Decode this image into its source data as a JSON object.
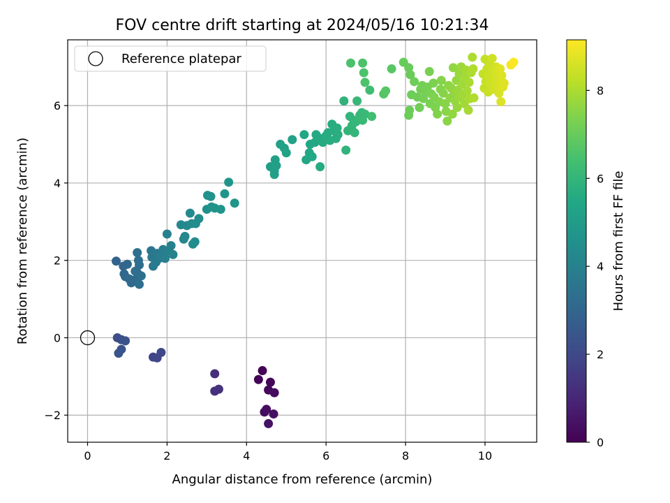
{
  "chart_data": {
    "type": "scatter",
    "title": "FOV centre drift starting at 2024/05/16 10:21:34",
    "xlabel": "Angular distance from reference (arcmin)",
    "ylabel": "Rotation from reference (arcmin)",
    "xlim": [
      -0.5,
      11.3
    ],
    "ylim": [
      -2.7,
      7.7
    ],
    "xticks": [
      0,
      2,
      4,
      6,
      8,
      10
    ],
    "yticks": [
      -2,
      0,
      2,
      4,
      6
    ],
    "grid": true,
    "legend": {
      "placement": "top-left",
      "entries": [
        "Reference platepar"
      ]
    },
    "reference_point": {
      "x": 0,
      "y": 0
    },
    "colorbar": {
      "label": "Hours from first FF file",
      "min": 0,
      "max": 9.15,
      "ticks": [
        0,
        2,
        4,
        6,
        8
      ],
      "colormap": "viridis"
    },
    "points": [
      {
        "x": 4.4,
        "y": -0.85,
        "c": 0.05
      },
      {
        "x": 4.3,
        "y": -1.08,
        "c": 0.1
      },
      {
        "x": 4.6,
        "y": -1.15,
        "c": 0.15
      },
      {
        "x": 4.55,
        "y": -1.35,
        "c": 0.2
      },
      {
        "x": 4.7,
        "y": -1.42,
        "c": 0.25
      },
      {
        "x": 4.45,
        "y": -1.92,
        "c": 0.3
      },
      {
        "x": 4.5,
        "y": -1.85,
        "c": 0.35
      },
      {
        "x": 4.68,
        "y": -1.97,
        "c": 0.4
      },
      {
        "x": 4.55,
        "y": -2.22,
        "c": 0.45
      },
      {
        "x": 3.2,
        "y": -0.93,
        "c": 1.2
      },
      {
        "x": 3.2,
        "y": -1.38,
        "c": 1.25
      },
      {
        "x": 3.3,
        "y": -1.33,
        "c": 1.3
      },
      {
        "x": 1.65,
        "y": -0.5,
        "c": 1.85
      },
      {
        "x": 1.75,
        "y": -0.52,
        "c": 1.9
      },
      {
        "x": 1.85,
        "y": -0.38,
        "c": 1.95
      },
      {
        "x": 0.75,
        "y": 0,
        "c": 2.2
      },
      {
        "x": 0.85,
        "y": -0.05,
        "c": 2.25
      },
      {
        "x": 0.95,
        "y": -0.08,
        "c": 2.3
      },
      {
        "x": 0.85,
        "y": -0.3,
        "c": 2.35
      },
      {
        "x": 0.78,
        "y": -0.4,
        "c": 2.4
      },
      {
        "x": 0.72,
        "y": 1.98,
        "c": 2.9
      },
      {
        "x": 0.9,
        "y": 1.85,
        "c": 3.0
      },
      {
        "x": 1.0,
        "y": 1.9,
        "c": 3.05
      },
      {
        "x": 0.92,
        "y": 1.65,
        "c": 3.1
      },
      {
        "x": 0.95,
        "y": 1.58,
        "c": 3.12
      },
      {
        "x": 1.05,
        "y": 1.52,
        "c": 3.15
      },
      {
        "x": 1.1,
        "y": 1.42,
        "c": 3.18
      },
      {
        "x": 1.2,
        "y": 1.5,
        "c": 3.2
      },
      {
        "x": 1.25,
        "y": 1.68,
        "c": 3.22
      },
      {
        "x": 1.3,
        "y": 1.88,
        "c": 3.25
      },
      {
        "x": 1.28,
        "y": 2.0,
        "c": 3.3
      },
      {
        "x": 1.25,
        "y": 2.2,
        "c": 3.32
      },
      {
        "x": 1.3,
        "y": 1.38,
        "c": 3.35
      },
      {
        "x": 1.35,
        "y": 1.6,
        "c": 3.38
      },
      {
        "x": 1.2,
        "y": 1.72,
        "c": 3.28
      },
      {
        "x": 1.6,
        "y": 2.25,
        "c": 3.6
      },
      {
        "x": 1.62,
        "y": 2.08,
        "c": 3.65
      },
      {
        "x": 1.65,
        "y": 1.85,
        "c": 3.7
      },
      {
        "x": 1.72,
        "y": 1.95,
        "c": 3.72
      },
      {
        "x": 1.75,
        "y": 2.18,
        "c": 3.75
      },
      {
        "x": 1.8,
        "y": 2.05,
        "c": 3.8
      },
      {
        "x": 1.88,
        "y": 2.12,
        "c": 3.85
      },
      {
        "x": 1.9,
        "y": 2.28,
        "c": 3.88
      },
      {
        "x": 1.95,
        "y": 2.05,
        "c": 3.9
      },
      {
        "x": 2.0,
        "y": 2.68,
        "c": 3.95
      },
      {
        "x": 2.05,
        "y": 2.25,
        "c": 3.98
      },
      {
        "x": 2.1,
        "y": 2.38,
        "c": 4.0
      },
      {
        "x": 2.15,
        "y": 2.15,
        "c": 4.02
      },
      {
        "x": 2.35,
        "y": 2.92,
        "c": 4.2
      },
      {
        "x": 2.42,
        "y": 2.55,
        "c": 4.22
      },
      {
        "x": 2.45,
        "y": 2.62,
        "c": 4.25
      },
      {
        "x": 2.5,
        "y": 2.9,
        "c": 4.28
      },
      {
        "x": 2.58,
        "y": 3.22,
        "c": 4.3
      },
      {
        "x": 2.62,
        "y": 2.95,
        "c": 4.32
      },
      {
        "x": 2.65,
        "y": 2.42,
        "c": 4.35
      },
      {
        "x": 2.7,
        "y": 2.48,
        "c": 4.38
      },
      {
        "x": 2.72,
        "y": 2.95,
        "c": 4.4
      },
      {
        "x": 2.8,
        "y": 3.08,
        "c": 4.42
      },
      {
        "x": 3.0,
        "y": 3.32,
        "c": 4.55
      },
      {
        "x": 3.02,
        "y": 3.68,
        "c": 4.58
      },
      {
        "x": 3.1,
        "y": 3.65,
        "c": 4.6
      },
      {
        "x": 3.12,
        "y": 3.38,
        "c": 4.62
      },
      {
        "x": 3.2,
        "y": 3.35,
        "c": 4.65
      },
      {
        "x": 3.35,
        "y": 3.32,
        "c": 4.68
      },
      {
        "x": 3.45,
        "y": 3.72,
        "c": 4.72
      },
      {
        "x": 3.55,
        "y": 4.02,
        "c": 4.75
      },
      {
        "x": 3.7,
        "y": 3.48,
        "c": 4.78
      },
      {
        "x": 4.6,
        "y": 4.42,
        "c": 5.1
      },
      {
        "x": 4.7,
        "y": 4.32,
        "c": 5.12
      },
      {
        "x": 4.72,
        "y": 4.6,
        "c": 5.14
      },
      {
        "x": 4.75,
        "y": 4.45,
        "c": 5.16
      },
      {
        "x": 4.7,
        "y": 4.22,
        "c": 5.18
      },
      {
        "x": 4.85,
        "y": 5.0,
        "c": 5.2
      },
      {
        "x": 4.95,
        "y": 4.9,
        "c": 5.22
      },
      {
        "x": 5.0,
        "y": 4.78,
        "c": 5.24
      },
      {
        "x": 5.15,
        "y": 5.12,
        "c": 5.26
      },
      {
        "x": 5.45,
        "y": 5.25,
        "c": 5.4
      },
      {
        "x": 5.5,
        "y": 4.6,
        "c": 5.42
      },
      {
        "x": 5.58,
        "y": 4.78,
        "c": 5.44
      },
      {
        "x": 5.6,
        "y": 5.0,
        "c": 5.46
      },
      {
        "x": 5.65,
        "y": 4.68,
        "c": 5.48
      },
      {
        "x": 5.72,
        "y": 5.05,
        "c": 5.5
      },
      {
        "x": 5.75,
        "y": 5.25,
        "c": 5.52
      },
      {
        "x": 5.8,
        "y": 5.18,
        "c": 5.54
      },
      {
        "x": 5.85,
        "y": 4.42,
        "c": 5.56
      },
      {
        "x": 5.92,
        "y": 5.05,
        "c": 5.58
      },
      {
        "x": 6.0,
        "y": 5.22,
        "c": 5.6
      },
      {
        "x": 6.05,
        "y": 5.3,
        "c": 5.62
      },
      {
        "x": 6.1,
        "y": 5.1,
        "c": 5.64
      },
      {
        "x": 6.15,
        "y": 5.52,
        "c": 5.66
      },
      {
        "x": 6.2,
        "y": 5.35,
        "c": 5.68
      },
      {
        "x": 6.25,
        "y": 5.15,
        "c": 5.7
      },
      {
        "x": 6.28,
        "y": 5.42,
        "c": 5.72
      },
      {
        "x": 6.3,
        "y": 5.25,
        "c": 5.74
      },
      {
        "x": 6.45,
        "y": 6.12,
        "c": 5.9
      },
      {
        "x": 6.5,
        "y": 4.85,
        "c": 5.92
      },
      {
        "x": 6.55,
        "y": 5.35,
        "c": 5.94
      },
      {
        "x": 6.6,
        "y": 5.72,
        "c": 5.96
      },
      {
        "x": 6.65,
        "y": 5.48,
        "c": 5.98
      },
      {
        "x": 6.7,
        "y": 5.62,
        "c": 6.0
      },
      {
        "x": 6.72,
        "y": 5.3,
        "c": 6.02
      },
      {
        "x": 6.75,
        "y": 5.58,
        "c": 6.04
      },
      {
        "x": 6.78,
        "y": 6.12,
        "c": 6.06
      },
      {
        "x": 6.85,
        "y": 5.75,
        "c": 6.08
      },
      {
        "x": 6.9,
        "y": 5.82,
        "c": 6.1
      },
      {
        "x": 6.92,
        "y": 5.62,
        "c": 6.12
      },
      {
        "x": 6.98,
        "y": 5.78,
        "c": 6.14
      },
      {
        "x": 7.1,
        "y": 6.4,
        "c": 6.3
      },
      {
        "x": 7.15,
        "y": 5.72,
        "c": 6.32
      },
      {
        "x": 6.62,
        "y": 7.1,
        "c": 6.5
      },
      {
        "x": 6.92,
        "y": 7.1,
        "c": 6.52
      },
      {
        "x": 6.95,
        "y": 6.85,
        "c": 6.54
      },
      {
        "x": 6.98,
        "y": 6.6,
        "c": 6.56
      },
      {
        "x": 7.45,
        "y": 6.3,
        "c": 6.7
      },
      {
        "x": 7.5,
        "y": 6.38,
        "c": 6.72
      },
      {
        "x": 7.65,
        "y": 6.95,
        "c": 6.74
      },
      {
        "x": 7.95,
        "y": 7.12,
        "c": 7.0
      },
      {
        "x": 8.08,
        "y": 6.98,
        "c": 7.02
      },
      {
        "x": 8.12,
        "y": 6.8,
        "c": 7.04
      },
      {
        "x": 8.08,
        "y": 5.75,
        "c": 7.06
      },
      {
        "x": 8.1,
        "y": 5.88,
        "c": 7.08
      },
      {
        "x": 8.15,
        "y": 6.28,
        "c": 7.1
      },
      {
        "x": 8.22,
        "y": 6.62,
        "c": 7.12
      },
      {
        "x": 8.3,
        "y": 6.22,
        "c": 7.14
      },
      {
        "x": 8.35,
        "y": 5.95,
        "c": 7.16
      },
      {
        "x": 8.38,
        "y": 6.42,
        "c": 7.18
      },
      {
        "x": 8.42,
        "y": 6.52,
        "c": 7.2
      },
      {
        "x": 8.45,
        "y": 6.18,
        "c": 7.22
      },
      {
        "x": 8.5,
        "y": 6.35,
        "c": 7.24
      },
      {
        "x": 8.55,
        "y": 6.48,
        "c": 7.26
      },
      {
        "x": 8.6,
        "y": 6.88,
        "c": 7.28
      },
      {
        "x": 8.62,
        "y": 6.05,
        "c": 7.3
      },
      {
        "x": 8.65,
        "y": 6.3,
        "c": 7.32
      },
      {
        "x": 8.7,
        "y": 6.58,
        "c": 7.34
      },
      {
        "x": 8.72,
        "y": 6.22,
        "c": 7.36
      },
      {
        "x": 8.75,
        "y": 5.95,
        "c": 7.38
      },
      {
        "x": 8.8,
        "y": 5.78,
        "c": 7.4
      },
      {
        "x": 8.85,
        "y": 6.1,
        "c": 7.42
      },
      {
        "x": 8.88,
        "y": 6.42,
        "c": 7.44
      },
      {
        "x": 8.9,
        "y": 6.65,
        "c": 7.46
      },
      {
        "x": 8.95,
        "y": 6.32,
        "c": 7.48
      },
      {
        "x": 9.0,
        "y": 6.05,
        "c": 7.5
      },
      {
        "x": 9.02,
        "y": 5.85,
        "c": 7.52
      },
      {
        "x": 9.05,
        "y": 5.6,
        "c": 7.54
      },
      {
        "x": 9.08,
        "y": 6.52,
        "c": 7.56
      },
      {
        "x": 9.12,
        "y": 6.2,
        "c": 7.58
      },
      {
        "x": 9.15,
        "y": 6.45,
        "c": 7.6
      },
      {
        "x": 9.18,
        "y": 5.78,
        "c": 7.62
      },
      {
        "x": 9.2,
        "y": 6.98,
        "c": 7.64
      },
      {
        "x": 9.22,
        "y": 6.35,
        "c": 7.66
      },
      {
        "x": 9.25,
        "y": 6.12,
        "c": 7.68
      },
      {
        "x": 9.28,
        "y": 6.65,
        "c": 7.7
      },
      {
        "x": 9.3,
        "y": 5.95,
        "c": 7.72
      },
      {
        "x": 9.32,
        "y": 6.4,
        "c": 7.74
      },
      {
        "x": 9.35,
        "y": 6.82,
        "c": 7.76
      },
      {
        "x": 9.38,
        "y": 6.22,
        "c": 7.78
      },
      {
        "x": 9.4,
        "y": 7.0,
        "c": 7.8
      },
      {
        "x": 9.42,
        "y": 6.55,
        "c": 7.82
      },
      {
        "x": 9.45,
        "y": 6.28,
        "c": 7.84
      },
      {
        "x": 9.48,
        "y": 6.05,
        "c": 7.86
      },
      {
        "x": 9.5,
        "y": 6.72,
        "c": 7.88
      },
      {
        "x": 9.52,
        "y": 6.92,
        "c": 7.9
      },
      {
        "x": 9.55,
        "y": 6.38,
        "c": 7.92
      },
      {
        "x": 9.58,
        "y": 5.88,
        "c": 7.94
      },
      {
        "x": 9.6,
        "y": 6.6,
        "c": 7.96
      },
      {
        "x": 9.62,
        "y": 6.18,
        "c": 7.98
      },
      {
        "x": 9.65,
        "y": 6.85,
        "c": 8.0
      },
      {
        "x": 9.68,
        "y": 7.25,
        "c": 8.02
      },
      {
        "x": 9.7,
        "y": 6.95,
        "c": 8.04
      },
      {
        "x": 9.72,
        "y": 6.2,
        "c": 8.06
      },
      {
        "x": 9.95,
        "y": 6.82,
        "c": 8.3
      },
      {
        "x": 9.98,
        "y": 6.45,
        "c": 8.32
      },
      {
        "x": 10.0,
        "y": 7.2,
        "c": 8.34
      },
      {
        "x": 10.02,
        "y": 6.62,
        "c": 8.36
      },
      {
        "x": 10.05,
        "y": 6.95,
        "c": 8.38
      },
      {
        "x": 10.08,
        "y": 6.35,
        "c": 8.4
      },
      {
        "x": 10.1,
        "y": 6.75,
        "c": 8.42
      },
      {
        "x": 10.12,
        "y": 7.05,
        "c": 8.44
      },
      {
        "x": 10.15,
        "y": 6.55,
        "c": 8.46
      },
      {
        "x": 10.18,
        "y": 7.22,
        "c": 8.48
      },
      {
        "x": 10.2,
        "y": 6.88,
        "c": 8.5
      },
      {
        "x": 10.22,
        "y": 6.42,
        "c": 8.52
      },
      {
        "x": 10.25,
        "y": 6.7,
        "c": 8.54
      },
      {
        "x": 10.28,
        "y": 7.0,
        "c": 8.56
      },
      {
        "x": 10.3,
        "y": 6.52,
        "c": 8.58
      },
      {
        "x": 10.32,
        "y": 6.85,
        "c": 8.6
      },
      {
        "x": 10.35,
        "y": 6.32,
        "c": 8.62
      },
      {
        "x": 10.38,
        "y": 6.62,
        "c": 8.64
      },
      {
        "x": 10.4,
        "y": 6.1,
        "c": 8.66
      },
      {
        "x": 10.42,
        "y": 6.78,
        "c": 8.68
      },
      {
        "x": 10.45,
        "y": 6.48,
        "c": 8.7
      },
      {
        "x": 10.48,
        "y": 6.58,
        "c": 8.72
      },
      {
        "x": 10.38,
        "y": 6.95,
        "c": 8.74
      },
      {
        "x": 10.65,
        "y": 7.05,
        "c": 9.05
      },
      {
        "x": 10.72,
        "y": 7.12,
        "c": 9.12
      }
    ]
  }
}
